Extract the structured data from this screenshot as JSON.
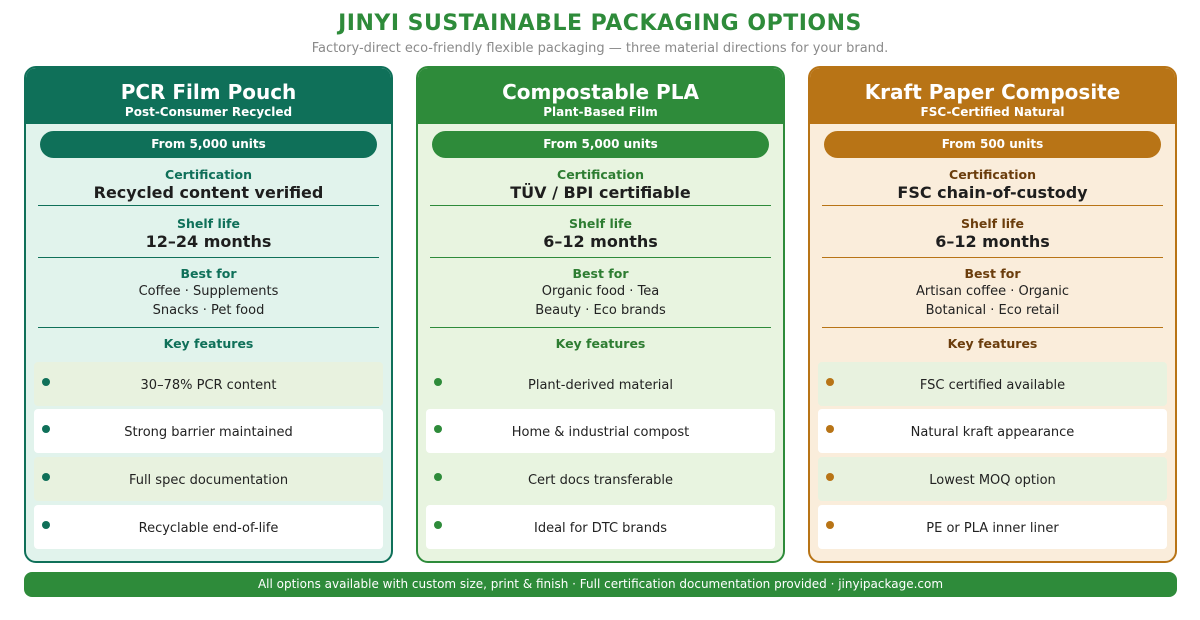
{
  "title": "JINYI SUSTAINABLE PACKAGING OPTIONS",
  "subtitle": "Factory-direct eco-friendly flexible packaging — three material directions for your brand.",
  "labels": {
    "certification": "Certification",
    "shelf_life": "Shelf life",
    "best_for": "Best for",
    "key_features": "Key features"
  },
  "cards": [
    {
      "name": "PCR Film Pouch",
      "sub": "Post-Consumer Recycled",
      "moq": "From 5,000 units",
      "certification": "Recycled content verified",
      "shelf_life": "12–24 months",
      "best_for": [
        "Coffee · Supplements",
        "Snacks · Pet food"
      ],
      "features": [
        "30–78% PCR content",
        "Strong barrier maintained",
        "Full spec documentation",
        "Recyclable end-of-life"
      ],
      "color": "#0f7059",
      "label_color": "#0f7059",
      "bg": "#e1f3ec",
      "tint": "#e8f2df"
    },
    {
      "name": "Compostable PLA",
      "sub": "Plant-Based Film",
      "moq": "From 5,000 units",
      "certification": "TÜV / BPI certifiable",
      "shelf_life": "6–12 months",
      "best_for": [
        "Organic food · Tea",
        "Beauty · Eco brands"
      ],
      "features": [
        "Plant-derived material",
        "Home & industrial compost",
        "Cert docs transferable",
        "Ideal for DTC brands"
      ],
      "color": "#2e8b3a",
      "label_color": "#2e7d32",
      "bg": "#e8f4e0",
      "tint": "#e8f4e0"
    },
    {
      "name": "Kraft Paper Composite",
      "sub": "FSC-Certified Natural",
      "moq": "From 500 units",
      "certification": "FSC chain-of-custody",
      "shelf_life": "6–12 months",
      "best_for": [
        "Artisan coffee · Organic",
        "Botanical · Eco retail"
      ],
      "features": [
        "FSC certified available",
        "Natural kraft appearance",
        "Lowest MOQ option",
        "PE or PLA inner liner"
      ],
      "color": "#b87416",
      "label_color": "#6b3d0c",
      "bg": "#faeddb",
      "tint": "#e8f2df"
    }
  ],
  "footer": "All options available with custom size, print & finish · Full certification documentation provided · jinyipackage.com"
}
